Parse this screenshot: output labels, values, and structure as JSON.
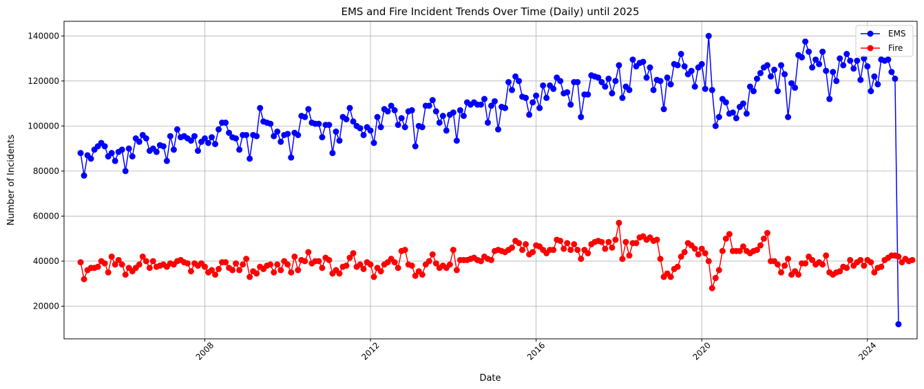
{
  "chart_data": {
    "type": "line",
    "title": "EMS and Fire Incident Trends Over Time (Daily) until 2025",
    "xlabel": "Date",
    "ylabel": "Number of Incidents",
    "xlim": [
      2004.6,
      2025.2
    ],
    "ylim": [
      5500,
      146500
    ],
    "x_ticks": [
      2008,
      2012,
      2016,
      2020,
      2024
    ],
    "x_tick_labels": [
      "2008",
      "2012",
      "2016",
      "2020",
      "2024"
    ],
    "y_ticks": [
      20000,
      40000,
      60000,
      80000,
      100000,
      120000,
      140000
    ],
    "y_tick_labels": [
      "20000",
      "40000",
      "60000",
      "80000",
      "100000",
      "120000",
      "140000"
    ],
    "grid": true,
    "legend_position": "top-right",
    "x_unit": "year (monthly points, fractional year)",
    "series": [
      {
        "name": "EMS",
        "color": "#0000ff",
        "x_start": 2005.0,
        "x_step": 0.0833333,
        "values": [
          88000,
          78000,
          87000,
          85500,
          89500,
          91000,
          92500,
          91000,
          86500,
          88000,
          84500,
          88500,
          89500,
          80000,
          90000,
          86500,
          94500,
          93000,
          96000,
          94500,
          89000,
          90000,
          88500,
          91500,
          91000,
          84500,
          95500,
          89500,
          98500,
          95000,
          95500,
          94500,
          93500,
          95500,
          89000,
          93000,
          94500,
          92500,
          95000,
          92000,
          98500,
          101500,
          101500,
          97000,
          95000,
          94500,
          89500,
          96000,
          96000,
          85500,
          96000,
          95500,
          108000,
          102000,
          101500,
          101000,
          95500,
          97500,
          93000,
          96000,
          96500,
          86000,
          97000,
          96000,
          104500,
          104000,
          107500,
          101500,
          101000,
          101000,
          95000,
          100500,
          100500,
          88000,
          97500,
          93500,
          104000,
          103000,
          108000,
          102000,
          100000,
          99000,
          96000,
          99500,
          98000,
          92500,
          104000,
          99500,
          107500,
          106500,
          109000,
          107000,
          100500,
          103500,
          99500,
          106500,
          107000,
          91000,
          100000,
          99500,
          109000,
          109000,
          111500,
          106500,
          101500,
          104500,
          98000,
          105000,
          106000,
          93500,
          107000,
          104500,
          110500,
          109500,
          110500,
          109500,
          109500,
          112000,
          101500,
          109000,
          111000,
          98500,
          108500,
          108000,
          119500,
          116000,
          122000,
          120000,
          113000,
          112500,
          105000,
          110500,
          113500,
          108000,
          118000,
          112500,
          118000,
          116500,
          121500,
          120000,
          114500,
          115000,
          109500,
          119500,
          119500,
          104000,
          114000,
          114000,
          122500,
          122000,
          121500,
          119500,
          117500,
          121000,
          114500,
          120000,
          127000,
          112500,
          117500,
          116000,
          129500,
          126500,
          128000,
          128500,
          121500,
          126000,
          116000,
          120500,
          120000,
          107500,
          121500,
          118500,
          127500,
          127000,
          132000,
          126500,
          123000,
          124500,
          117500,
          126000,
          127500,
          116500,
          140000,
          116000,
          100000,
          104000,
          112000,
          110500,
          105500,
          106000,
          103500,
          108500,
          110000,
          105500,
          117500,
          115500,
          121000,
          123500,
          126000,
          127000,
          122000,
          125000,
          115500,
          127000,
          123000,
          104000,
          119000,
          117000,
          131500,
          130500,
          137500,
          133000,
          126000,
          129500,
          127500,
          133000,
          124500,
          112000,
          124000,
          120000,
          130000,
          127000,
          132000,
          129000,
          125500,
          129000,
          120500,
          130000,
          126500,
          115500,
          122000,
          118500,
          129500,
          129000,
          129500,
          124000,
          121000,
          12000
        ]
      },
      {
        "name": "Fire",
        "color": "#ff0000",
        "x_start": 2005.0,
        "x_step": 0.0833333,
        "values": [
          39500,
          32000,
          36000,
          37000,
          37000,
          37500,
          40000,
          39000,
          35000,
          42000,
          38500,
          40500,
          38500,
          34000,
          37000,
          35500,
          37000,
          38500,
          42000,
          40000,
          37000,
          40000,
          37500,
          38000,
          38500,
          37500,
          39000,
          38500,
          40000,
          40500,
          39500,
          39000,
          35500,
          39000,
          38000,
          39000,
          37500,
          35000,
          36000,
          34000,
          36500,
          39500,
          39500,
          37000,
          36000,
          39000,
          36000,
          38500,
          41000,
          33000,
          35500,
          34500,
          37500,
          36500,
          38000,
          38500,
          35000,
          38500,
          36000,
          40000,
          38500,
          35000,
          42000,
          36000,
          40500,
          40000,
          44000,
          39000,
          40000,
          40000,
          37000,
          41500,
          40500,
          34500,
          36000,
          34500,
          37500,
          38000,
          41500,
          43500,
          37500,
          38500,
          36500,
          39500,
          38500,
          33000,
          37000,
          35500,
          38500,
          39500,
          41000,
          39500,
          37000,
          44500,
          45000,
          38500,
          38000,
          33500,
          35500,
          34000,
          38500,
          40000,
          43000,
          39000,
          37000,
          38000,
          37000,
          38500,
          45000,
          36000,
          40500,
          40500,
          40500,
          41000,
          41500,
          40500,
          40000,
          42000,
          41000,
          40500,
          44500,
          45000,
          44500,
          44000,
          45000,
          46000,
          49000,
          48000,
          45000,
          47500,
          43000,
          44000,
          47000,
          46500,
          45000,
          43500,
          45000,
          45000,
          49500,
          49000,
          45500,
          48000,
          45000,
          47500,
          45000,
          41000,
          45000,
          43500,
          47500,
          48500,
          49000,
          48500,
          45500,
          48500,
          46000,
          49500,
          57000,
          41000,
          48500,
          42500,
          48000,
          48000,
          50500,
          51000,
          49500,
          50500,
          49000,
          49500,
          41000,
          33000,
          34500,
          33000,
          36500,
          37500,
          42000,
          44000,
          48000,
          47000,
          45500,
          43000,
          45500,
          43500,
          40000,
          28000,
          32500,
          36000,
          44500,
          50000,
          52000,
          44500,
          44500,
          44500,
          46500,
          44500,
          43500,
          44500,
          45000,
          47000,
          50000,
          52500,
          40000,
          40000,
          38500,
          35000,
          38000,
          41000,
          34000,
          35500,
          34000,
          39000,
          39000,
          42000,
          40500,
          38500,
          39500,
          38500,
          42500,
          35000,
          34000,
          35000,
          35500,
          37500,
          37000,
          40500,
          38000,
          39500,
          40500,
          38000,
          40500,
          39500,
          35000,
          37000,
          37500,
          40500,
          41500,
          42500,
          42500,
          42000,
          39500,
          41000,
          40000,
          40500
        ]
      }
    ]
  }
}
